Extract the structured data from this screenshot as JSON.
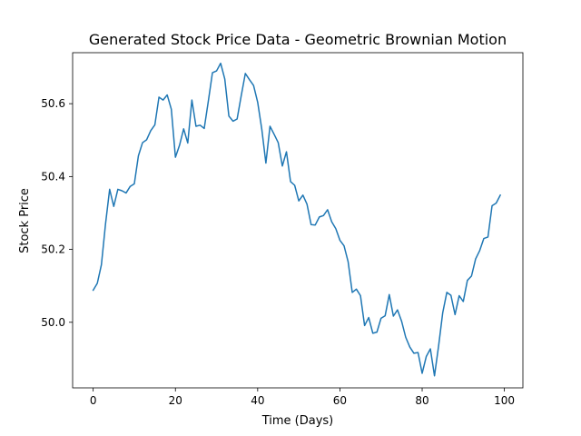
{
  "chart_data": {
    "type": "line",
    "title": "Generated Stock Price Data - Geometric Brownian Motion",
    "xlabel": "Time (Days)",
    "ylabel": "Stock Price",
    "xlim": [
      -5,
      104.5
    ],
    "ylim": [
      49.82,
      50.74
    ],
    "xticks": [
      0,
      20,
      40,
      60,
      80,
      100
    ],
    "xtick_labels": [
      "0",
      "20",
      "40",
      "60",
      "80",
      "100"
    ],
    "yticks": [
      50.0,
      50.2,
      50.4,
      50.6
    ],
    "ytick_labels": [
      "50.0",
      "50.2",
      "50.4",
      "50.6"
    ],
    "grid": false,
    "series": [
      {
        "color": "#1f77b4",
        "x": [
          0,
          1,
          2,
          3,
          4,
          5,
          6,
          7,
          8,
          9,
          10,
          11,
          12,
          13,
          14,
          15,
          16,
          17,
          18,
          19,
          20,
          21,
          22,
          23,
          24,
          25,
          26,
          27,
          28,
          29,
          30,
          31,
          32,
          33,
          34,
          35,
          36,
          37,
          38,
          39,
          40,
          41,
          42,
          43,
          44,
          45,
          46,
          47,
          48,
          49,
          50,
          51,
          52,
          53,
          54,
          55,
          56,
          57,
          58,
          59,
          60,
          61,
          62,
          63,
          64,
          65,
          66,
          67,
          68,
          69,
          70,
          71,
          72,
          73,
          74,
          75,
          76,
          77,
          78,
          79,
          80,
          81,
          82,
          83,
          84,
          85,
          86,
          87,
          88,
          89,
          90,
          91,
          92,
          93,
          94,
          95,
          96,
          97,
          98,
          99
        ],
        "y": [
          50.088,
          50.107,
          50.158,
          50.27,
          50.365,
          50.318,
          50.365,
          50.361,
          50.355,
          50.373,
          50.38,
          50.457,
          50.493,
          50.501,
          50.526,
          50.542,
          50.618,
          50.61,
          50.624,
          50.585,
          50.453,
          50.486,
          50.531,
          50.492,
          50.61,
          50.538,
          50.541,
          50.532,
          50.607,
          50.685,
          50.69,
          50.711,
          50.668,
          50.566,
          50.552,
          50.558,
          50.622,
          50.683,
          50.666,
          50.65,
          50.604,
          50.53,
          50.437,
          50.538,
          50.516,
          50.493,
          50.429,
          50.468,
          50.386,
          50.376,
          50.333,
          50.349,
          50.324,
          50.268,
          50.267,
          50.289,
          50.293,
          50.309,
          50.276,
          50.257,
          50.225,
          50.21,
          50.166,
          50.082,
          50.091,
          50.073,
          49.991,
          50.013,
          49.97,
          49.973,
          50.011,
          50.018,
          50.076,
          50.017,
          50.034,
          50.003,
          49.959,
          49.932,
          49.915,
          49.917,
          49.86,
          49.906,
          49.927,
          49.853,
          49.935,
          50.026,
          50.082,
          50.074,
          50.021,
          50.073,
          50.057,
          50.115,
          50.127,
          50.174,
          50.197,
          50.23,
          50.234,
          50.32,
          50.327,
          50.349
        ]
      }
    ]
  }
}
